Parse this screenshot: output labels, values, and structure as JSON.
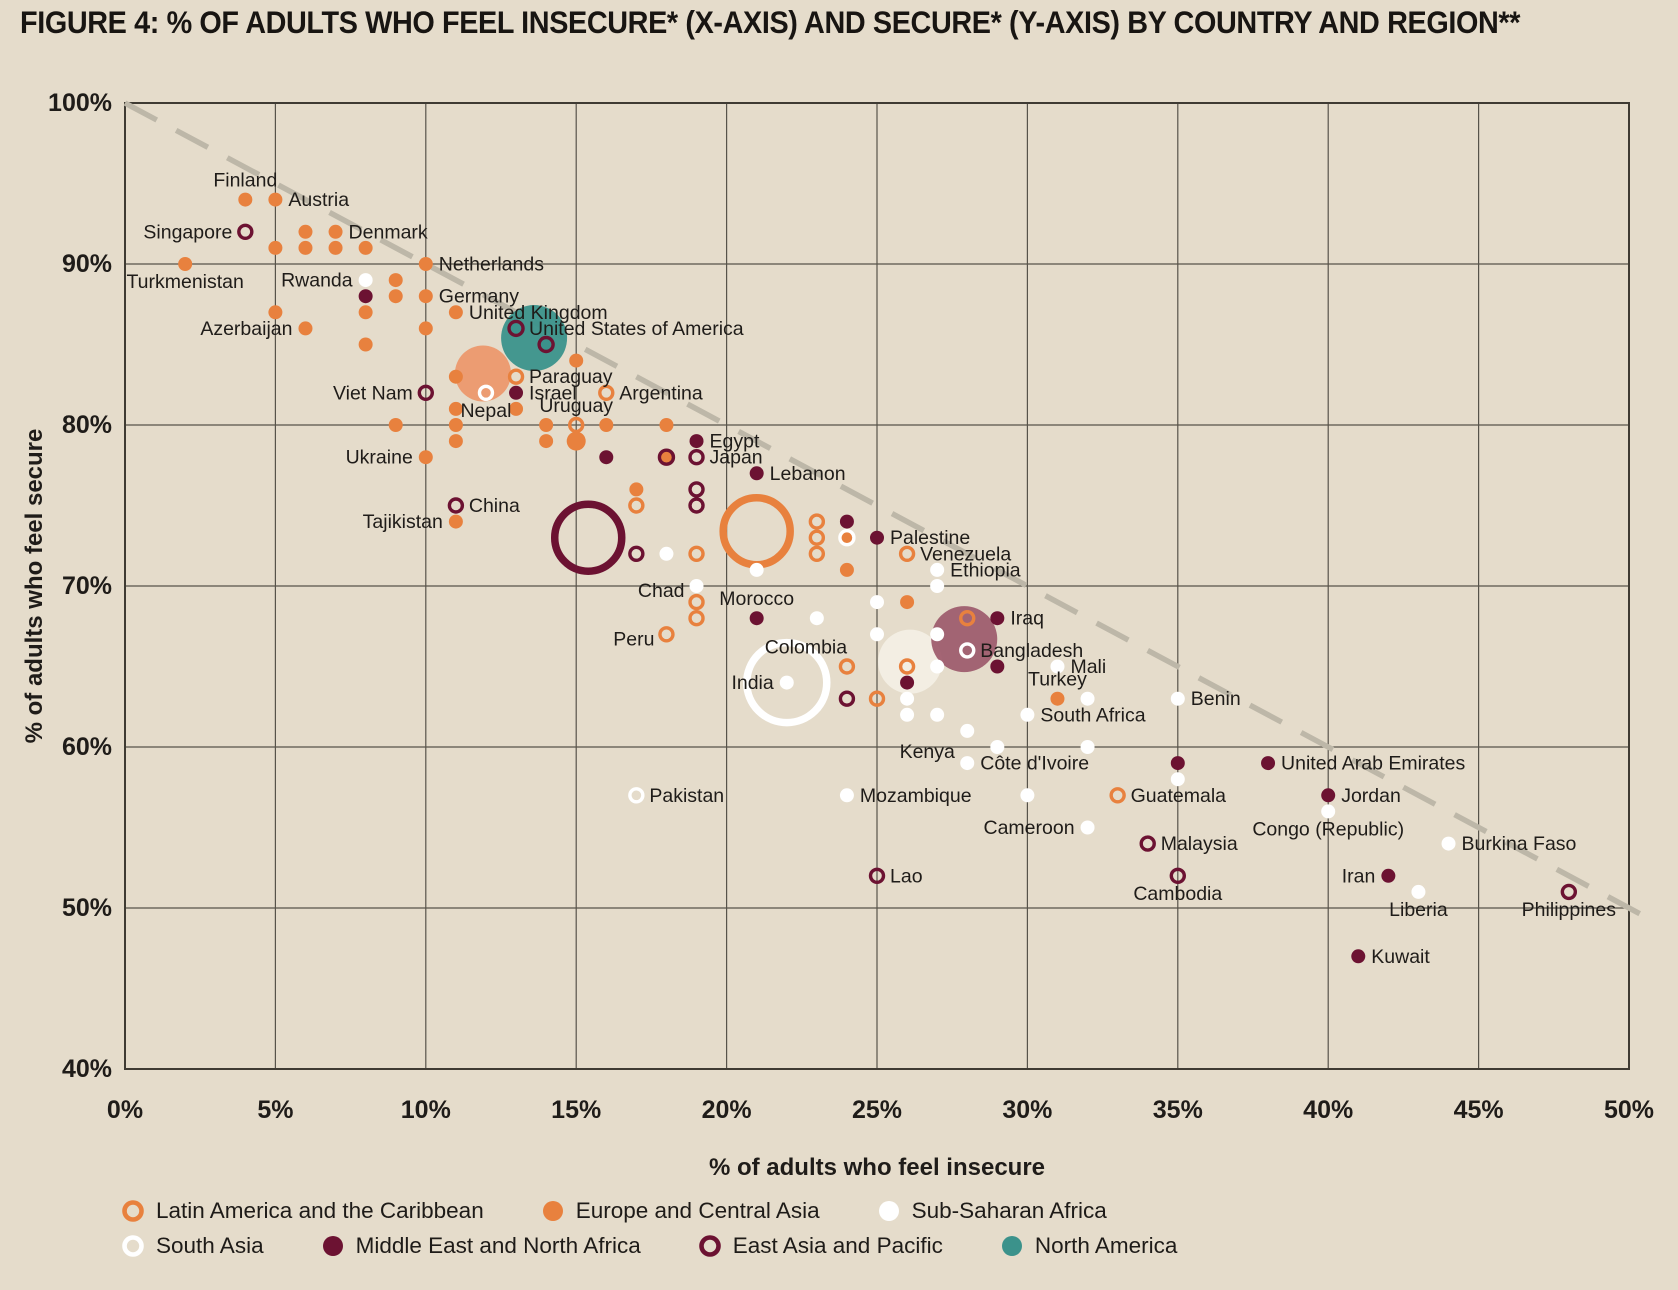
{
  "title": "FIGURE 4: % OF ADULTS WHO FEEL INSECURE* (X-AXIS) AND SECURE* (Y-AXIS) BY COUNTRY AND REGION**",
  "colors": {
    "background": "#E5DCCB",
    "orange": "#E8813E",
    "maroon": "#6C1232",
    "white": "#FFFFFF",
    "teal": "#3B928B",
    "grid": "#57534A",
    "frame": "#3F3B33",
    "dashed_line": "#BDB7A8",
    "text": "#1F1C19",
    "eca_bubble": "#EC9C72",
    "ssa_bubble": "#F3EEE3",
    "mena_bubble": "#9D5A6C"
  },
  "chart_data": {
    "type": "scatter",
    "title": "FIGURE 4: % OF ADULTS WHO FEEL INSECURE* (X-AXIS) AND SECURE* (Y-AXIS) BY COUNTRY AND REGION**",
    "xlabel": "% of adults who feel insecure",
    "ylabel": "% of adults who feel secure",
    "xlim": [
      0,
      50
    ],
    "ylim": [
      40,
      100
    ],
    "x_ticks": [
      "0%",
      "5%",
      "10%",
      "15%",
      "20%",
      "25%",
      "30%",
      "35%",
      "40%",
      "45%",
      "50%"
    ],
    "y_ticks": [
      "100%",
      "90%",
      "80%",
      "70%",
      "60%",
      "50%",
      "40%"
    ],
    "grid": true,
    "diagonal_line": {
      "from_x": 0,
      "from_y": 100,
      "to_x": 50.6,
      "to_y": 49.4,
      "style": "dashed"
    },
    "regions": {
      "latam": {
        "label": "Latin America and the Caribbean",
        "marker": "ring",
        "color": "#E8813E"
      },
      "eca": {
        "label": "Europe and Central Asia",
        "marker": "dot",
        "color": "#E8813E"
      },
      "ssa": {
        "label": "Sub-Saharan Africa",
        "marker": "dot",
        "color": "#FFFFFF"
      },
      "south_asia": {
        "label": "South Asia",
        "marker": "ring",
        "color": "#FFFFFF"
      },
      "mena": {
        "label": "Middle East and North Africa",
        "marker": "dot",
        "color": "#6C1232"
      },
      "eap": {
        "label": "East Asia and Pacific",
        "marker": "ring",
        "color": "#6C1232"
      },
      "na": {
        "label": "North America",
        "marker": "dot",
        "color": "#3B928B"
      }
    },
    "countries": [
      {
        "name": "Finland",
        "x": 4,
        "y": 94,
        "region": "eca",
        "label": "above"
      },
      {
        "name": "Austria",
        "x": 5,
        "y": 94,
        "region": "eca",
        "label": "right"
      },
      {
        "name": "Singapore",
        "x": 4,
        "y": 92,
        "region": "eap",
        "label": "left"
      },
      {
        "name": "Denmark",
        "x": 7,
        "y": 92,
        "region": "eca",
        "label": "right"
      },
      {
        "name": "Turkmenistan",
        "x": 2,
        "y": 90,
        "region": "eca",
        "label": "below"
      },
      {
        "name": "Netherlands",
        "x": 10,
        "y": 90,
        "region": "eca",
        "label": "right"
      },
      {
        "name": "Rwanda",
        "x": 8,
        "y": 89,
        "region": "ssa",
        "label": "left"
      },
      {
        "name": "Germany",
        "x": 10,
        "y": 88,
        "region": "eca",
        "label": "right"
      },
      {
        "name": "United Kingdom",
        "x": 11,
        "y": 87,
        "region": "eca",
        "label": "right"
      },
      {
        "name": "Azerbaijan",
        "x": 6,
        "y": 86,
        "region": "eca",
        "label": "left"
      },
      {
        "name": "United States of America",
        "x": 13,
        "y": 86,
        "region": "na",
        "label": "right",
        "ring": "#6C1232"
      },
      {
        "name": "Paraguay",
        "x": 13,
        "y": 83,
        "region": "latam",
        "label": "right"
      },
      {
        "name": "Viet Nam",
        "x": 10,
        "y": 82,
        "region": "eap",
        "label": "left"
      },
      {
        "name": "Nepal",
        "x": 12,
        "y": 82,
        "region": "south_asia",
        "label": "below"
      },
      {
        "name": "Israel",
        "x": 13,
        "y": 82,
        "region": "mena",
        "label": "right"
      },
      {
        "name": "Argentina",
        "x": 16,
        "y": 82,
        "region": "latam",
        "label": "right"
      },
      {
        "name": "Uruguay",
        "x": 15,
        "y": 80,
        "region": "latam",
        "label": "above"
      },
      {
        "name": "Ukraine",
        "x": 10,
        "y": 78,
        "region": "eca",
        "label": "left"
      },
      {
        "name": "Egypt",
        "x": 19,
        "y": 79,
        "region": "mena",
        "label": "right"
      },
      {
        "name": "Japan",
        "x": 19,
        "y": 78,
        "region": "eap",
        "label": "right"
      },
      {
        "name": "Lebanon",
        "x": 21,
        "y": 77,
        "region": "mena",
        "label": "right"
      },
      {
        "name": "China",
        "x": 11,
        "y": 75,
        "region": "eap",
        "label": "right"
      },
      {
        "name": "Tajikistan",
        "x": 11,
        "y": 74,
        "region": "eca",
        "label": "left"
      },
      {
        "name": "Chad",
        "x": 19,
        "y": 70,
        "region": "ssa",
        "label": "left-low"
      },
      {
        "name": "Morocco",
        "x": 21,
        "y": 68,
        "region": "mena",
        "label": "above"
      },
      {
        "name": "Peru",
        "x": 18,
        "y": 67,
        "region": "latam",
        "label": "left-low"
      },
      {
        "name": "Palestine",
        "x": 25,
        "y": 73,
        "region": "mena",
        "label": "right"
      },
      {
        "name": "Venezuela",
        "x": 26,
        "y": 72,
        "region": "latam",
        "label": "right"
      },
      {
        "name": "Ethiopia",
        "x": 27,
        "y": 71,
        "region": "ssa",
        "label": "right"
      },
      {
        "name": "Iraq",
        "x": 29,
        "y": 68,
        "region": "mena",
        "label": "right"
      },
      {
        "name": "Bangladesh",
        "x": 28,
        "y": 66,
        "region": "south_asia",
        "label": "right"
      },
      {
        "name": "Mali",
        "x": 31,
        "y": 65,
        "region": "ssa",
        "label": "right"
      },
      {
        "name": "Turkey",
        "x": 31,
        "y": 63,
        "region": "eca",
        "label": "above"
      },
      {
        "name": "South Africa",
        "x": 30,
        "y": 62,
        "region": "ssa",
        "label": "right"
      },
      {
        "name": "Benin",
        "x": 35,
        "y": 63,
        "region": "ssa",
        "label": "right"
      },
      {
        "name": "Kenya",
        "x": 28,
        "y": 61,
        "region": "ssa",
        "label": "below-left"
      },
      {
        "name": "Côte d'Ivoire",
        "x": 28,
        "y": 59,
        "region": "ssa",
        "label": "right"
      },
      {
        "name": "Colombia",
        "x": 24,
        "y": 65,
        "region": "latam",
        "label": "above-left"
      },
      {
        "name": "India",
        "x": 22,
        "y": 64,
        "region": "south_asia",
        "label": "left",
        "marker_override": "dot"
      },
      {
        "name": "Mozambique",
        "x": 24,
        "y": 57,
        "region": "ssa",
        "label": "right"
      },
      {
        "name": "Pakistan",
        "x": 17,
        "y": 57,
        "region": "south_asia",
        "label": "right"
      },
      {
        "name": "Cameroon",
        "x": 32,
        "y": 55,
        "region": "ssa",
        "label": "left"
      },
      {
        "name": "Guatemala",
        "x": 33,
        "y": 57,
        "region": "latam",
        "label": "right"
      },
      {
        "name": "Malaysia",
        "x": 34,
        "y": 54,
        "region": "eap",
        "label": "right"
      },
      {
        "name": "Cambodia",
        "x": 35,
        "y": 52,
        "region": "eap",
        "label": "below"
      },
      {
        "name": "Lao",
        "x": 25,
        "y": 52,
        "region": "eap",
        "label": "right"
      },
      {
        "name": "United Arab Emirates",
        "x": 38,
        "y": 59,
        "region": "mena",
        "label": "right"
      },
      {
        "name": "Jordan",
        "x": 40,
        "y": 57,
        "region": "mena",
        "label": "right"
      },
      {
        "name": "Congo (Republic)",
        "x": 40,
        "y": 56,
        "region": "ssa",
        "label": "below"
      },
      {
        "name": "Burkina Faso",
        "x": 44,
        "y": 54,
        "region": "ssa",
        "label": "right"
      },
      {
        "name": "Iran",
        "x": 42,
        "y": 52,
        "region": "mena",
        "label": "left"
      },
      {
        "name": "Liberia",
        "x": 43,
        "y": 51,
        "region": "ssa",
        "label": "below"
      },
      {
        "name": "Philippines",
        "x": 48,
        "y": 51,
        "region": "eap",
        "label": "below"
      },
      {
        "name": "Kuwait",
        "x": 41,
        "y": 47,
        "region": "mena",
        "label": "right"
      }
    ],
    "region_bubbles": [
      {
        "region": "Europe and Central Asia",
        "x": 11.9,
        "y": 83.2,
        "r": 28,
        "style": "fill",
        "color": "#EC9C72"
      },
      {
        "region": "North America",
        "x": 13.6,
        "y": 85.4,
        "r": 33,
        "style": "fill",
        "color": "#3B928B",
        "opacity": 0.95
      },
      {
        "region": "Sub-Saharan Africa",
        "x": 26.1,
        "y": 65.3,
        "r": 32,
        "style": "fill",
        "color": "#F3EEE3",
        "opacity": 0.97
      },
      {
        "region": "Middle East and North Africa",
        "x": 27.9,
        "y": 66.7,
        "r": 33,
        "style": "fill",
        "color": "#9D5A6C",
        "opacity": 0.93
      },
      {
        "region": "East Asia and Pacific",
        "x": 15.4,
        "y": 73.0,
        "r": 33.5,
        "style": "ring",
        "color": "#6C1232",
        "stroke": 7.5
      },
      {
        "region": "Latin America and the Caribbean",
        "x": 21.0,
        "y": 73.4,
        "r": 33.5,
        "style": "ring",
        "color": "#E8813E",
        "stroke": 7.5
      },
      {
        "region": "South Asia",
        "x": 22.0,
        "y": 64.0,
        "r": 40,
        "style": "ring",
        "color": "#FFFFFF",
        "stroke": 7.5
      }
    ],
    "unlabeled_points": [
      {
        "x": 6,
        "y": 92,
        "t": "o"
      },
      {
        "x": 5,
        "y": 91,
        "t": "o"
      },
      {
        "x": 6,
        "y": 91,
        "t": "o"
      },
      {
        "x": 7,
        "y": 91,
        "t": "o"
      },
      {
        "x": 8,
        "y": 91,
        "t": "o"
      },
      {
        "x": 9,
        "y": 89,
        "t": "o"
      },
      {
        "x": 8,
        "y": 88,
        "t": "m"
      },
      {
        "x": 9,
        "y": 88,
        "t": "o"
      },
      {
        "x": 5,
        "y": 87,
        "t": "o"
      },
      {
        "x": 8,
        "y": 87,
        "t": "o"
      },
      {
        "x": 10,
        "y": 86,
        "t": "o"
      },
      {
        "x": 8,
        "y": 85,
        "t": "o"
      },
      {
        "x": 14,
        "y": 85,
        "t": "t"
      },
      {
        "x": 15,
        "y": 84,
        "t": "o"
      },
      {
        "x": 11,
        "y": 83,
        "t": "o"
      },
      {
        "x": 13,
        "y": 81,
        "t": "o"
      },
      {
        "x": 11,
        "y": 81,
        "t": "o"
      },
      {
        "x": 9,
        "y": 80,
        "t": "o"
      },
      {
        "x": 11,
        "y": 80,
        "t": "o"
      },
      {
        "x": 14,
        "y": 80,
        "t": "o"
      },
      {
        "x": 16,
        "y": 80,
        "t": "o"
      },
      {
        "x": 18,
        "y": 80,
        "t": "o"
      },
      {
        "x": 11,
        "y": 79,
        "t": "o"
      },
      {
        "x": 14,
        "y": 79,
        "t": "o"
      },
      {
        "x": 15,
        "y": 79,
        "t": "o",
        "r": 9.5
      },
      {
        "x": 16,
        "y": 78,
        "t": "m"
      },
      {
        "x": 18,
        "y": 78,
        "t": "om"
      },
      {
        "x": 17,
        "y": 76,
        "t": "o"
      },
      {
        "x": 19,
        "y": 76,
        "t": "mr"
      },
      {
        "x": 17,
        "y": 75,
        "t": "or"
      },
      {
        "x": 19,
        "y": 75,
        "t": "mr"
      },
      {
        "x": 23,
        "y": 74,
        "t": "or"
      },
      {
        "x": 24,
        "y": 74,
        "t": "m"
      },
      {
        "x": 23,
        "y": 73,
        "t": "or"
      },
      {
        "x": 24,
        "y": 73,
        "t": "ow"
      },
      {
        "x": 17,
        "y": 72,
        "t": "mr"
      },
      {
        "x": 18,
        "y": 72,
        "t": "w"
      },
      {
        "x": 19,
        "y": 72,
        "t": "or"
      },
      {
        "x": 23,
        "y": 72,
        "t": "or"
      },
      {
        "x": 21,
        "y": 71,
        "t": "w"
      },
      {
        "x": 24,
        "y": 71,
        "t": "o"
      },
      {
        "x": 27,
        "y": 70,
        "t": "w"
      },
      {
        "x": 19,
        "y": 69,
        "t": "or"
      },
      {
        "x": 25,
        "y": 69,
        "t": "w"
      },
      {
        "x": 26,
        "y": 69,
        "t": "o"
      },
      {
        "x": 19,
        "y": 68,
        "t": "or"
      },
      {
        "x": 23,
        "y": 68,
        "t": "w"
      },
      {
        "x": 28,
        "y": 68,
        "t": "or"
      },
      {
        "x": 25,
        "y": 67,
        "t": "w"
      },
      {
        "x": 27,
        "y": 67,
        "t": "w"
      },
      {
        "x": 26,
        "y": 65,
        "t": "or"
      },
      {
        "x": 27,
        "y": 65,
        "t": "w"
      },
      {
        "x": 29,
        "y": 65,
        "t": "m"
      },
      {
        "x": 26,
        "y": 64,
        "t": "m"
      },
      {
        "x": 24,
        "y": 63,
        "t": "mr"
      },
      {
        "x": 25,
        "y": 63,
        "t": "or"
      },
      {
        "x": 26,
        "y": 63,
        "t": "w"
      },
      {
        "x": 32,
        "y": 63,
        "t": "w"
      },
      {
        "x": 26,
        "y": 62,
        "t": "w"
      },
      {
        "x": 27,
        "y": 62,
        "t": "w"
      },
      {
        "x": 29,
        "y": 60,
        "t": "w"
      },
      {
        "x": 32,
        "y": 60,
        "t": "w"
      },
      {
        "x": 35,
        "y": 59,
        "t": "m"
      },
      {
        "x": 35,
        "y": 58,
        "t": "w"
      },
      {
        "x": 30,
        "y": 57,
        "t": "w"
      }
    ],
    "legend_rows": [
      [
        "latam",
        "eca",
        "ssa"
      ],
      [
        "south_asia",
        "mena",
        "eap",
        "na"
      ]
    ]
  }
}
